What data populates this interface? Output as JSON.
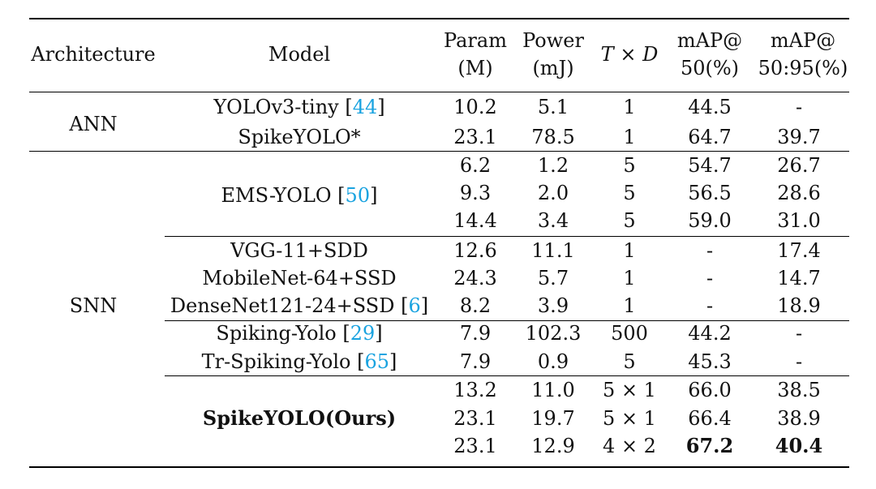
{
  "table": {
    "headers": {
      "architecture": "Architecture",
      "model": "Model",
      "param_top": "Param",
      "param_bottom": "(M)",
      "power_top": "Power",
      "power_bottom": "(mJ)",
      "txd_t": "T",
      "txd_times": "×",
      "txd_d": "D",
      "map50_top": "mAP@",
      "map50_bottom": "50(%)",
      "map5095_top": "mAP@",
      "map5095_bottom": "50:95(%)"
    },
    "architectures": {
      "ann": "ANN",
      "snn": "SNN"
    },
    "models": [
      {
        "name": "YOLOv3-tiny [",
        "cite": "44",
        "close": "]"
      },
      {
        "name": "SpikeYOLO*",
        "cite": "",
        "close": ""
      },
      {
        "name": "EMS-YOLO [",
        "cite": "50",
        "close": "]"
      },
      {
        "name": "VGG-11+SDD",
        "cite": "",
        "close": ""
      },
      {
        "name": "MobileNet-64+SSD",
        "cite": "",
        "close": ""
      },
      {
        "name": "DenseNet121-24+SSD [",
        "cite": "6",
        "close": "]"
      },
      {
        "name": "Spiking-Yolo [",
        "cite": "29",
        "close": "]"
      },
      {
        "name": "Tr-Spiking-Yolo [",
        "cite": "65",
        "close": "]"
      },
      {
        "name": "SpikeYOLO(Ours)",
        "cite": "",
        "close": ""
      }
    ],
    "rows": [
      {
        "param": "10.2",
        "power": "5.1",
        "txd": "1",
        "map50": "44.5",
        "map5095": "-"
      },
      {
        "param": "23.1",
        "power": "78.5",
        "txd": "1",
        "map50": "64.7",
        "map5095": "39.7"
      },
      {
        "param": "6.2",
        "power": "1.2",
        "txd": "5",
        "map50": "54.7",
        "map5095": "26.7"
      },
      {
        "param": "9.3",
        "power": "2.0",
        "txd": "5",
        "map50": "56.5",
        "map5095": "28.6"
      },
      {
        "param": "14.4",
        "power": "3.4",
        "txd": "5",
        "map50": "59.0",
        "map5095": "31.0"
      },
      {
        "param": "12.6",
        "power": "11.1",
        "txd": "1",
        "map50": "-",
        "map5095": "17.4"
      },
      {
        "param": "24.3",
        "power": "5.7",
        "txd": "1",
        "map50": "-",
        "map5095": "14.7"
      },
      {
        "param": "8.2",
        "power": "3.9",
        "txd": "1",
        "map50": "-",
        "map5095": "18.9"
      },
      {
        "param": "7.9",
        "power": "102.3",
        "txd": "500",
        "map50": "44.2",
        "map5095": "-"
      },
      {
        "param": "7.9",
        "power": "0.9",
        "txd": "5",
        "map50": "45.3",
        "map5095": "-"
      },
      {
        "param": "13.2",
        "power": "11.0",
        "txd": "5 × 1",
        "map50": "66.0",
        "map5095": "38.5"
      },
      {
        "param": "23.1",
        "power": "19.7",
        "txd": "5 × 1",
        "map50": "66.4",
        "map5095": "38.9"
      },
      {
        "param": "23.1",
        "power": "12.9",
        "txd": "4 × 2",
        "map50": "67.2",
        "map5095": "40.4"
      }
    ]
  }
}
